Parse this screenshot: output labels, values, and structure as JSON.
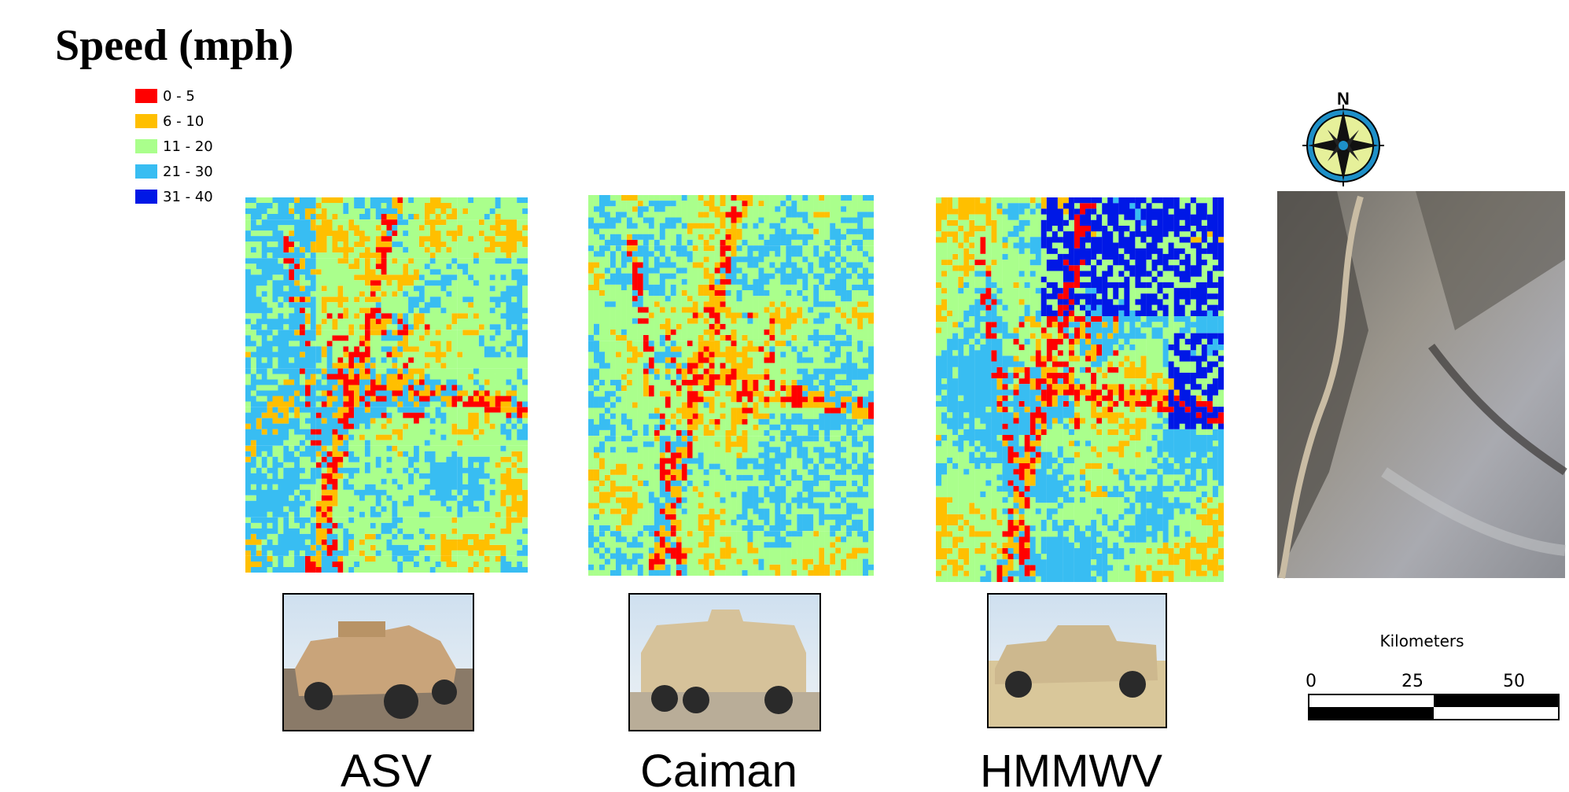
{
  "title": "Speed (mph)",
  "legend": [
    {
      "label": "0 - 5",
      "color": "#ff0000"
    },
    {
      "label": "6 - 10",
      "color": "#ffbf00"
    },
    {
      "label": "11 - 20",
      "color": "#aaff8c"
    },
    {
      "label": "21 - 30",
      "color": "#38bdf2"
    },
    {
      "label": "31 - 40",
      "color": "#0018e6"
    }
  ],
  "panels": [
    {
      "label": "ASV"
    },
    {
      "label": "Caiman"
    },
    {
      "label": "HMMWV"
    }
  ],
  "compass": {
    "label": "N"
  },
  "scale_bar": {
    "title": "Kilometers",
    "ticks": [
      0,
      25,
      50
    ]
  }
}
